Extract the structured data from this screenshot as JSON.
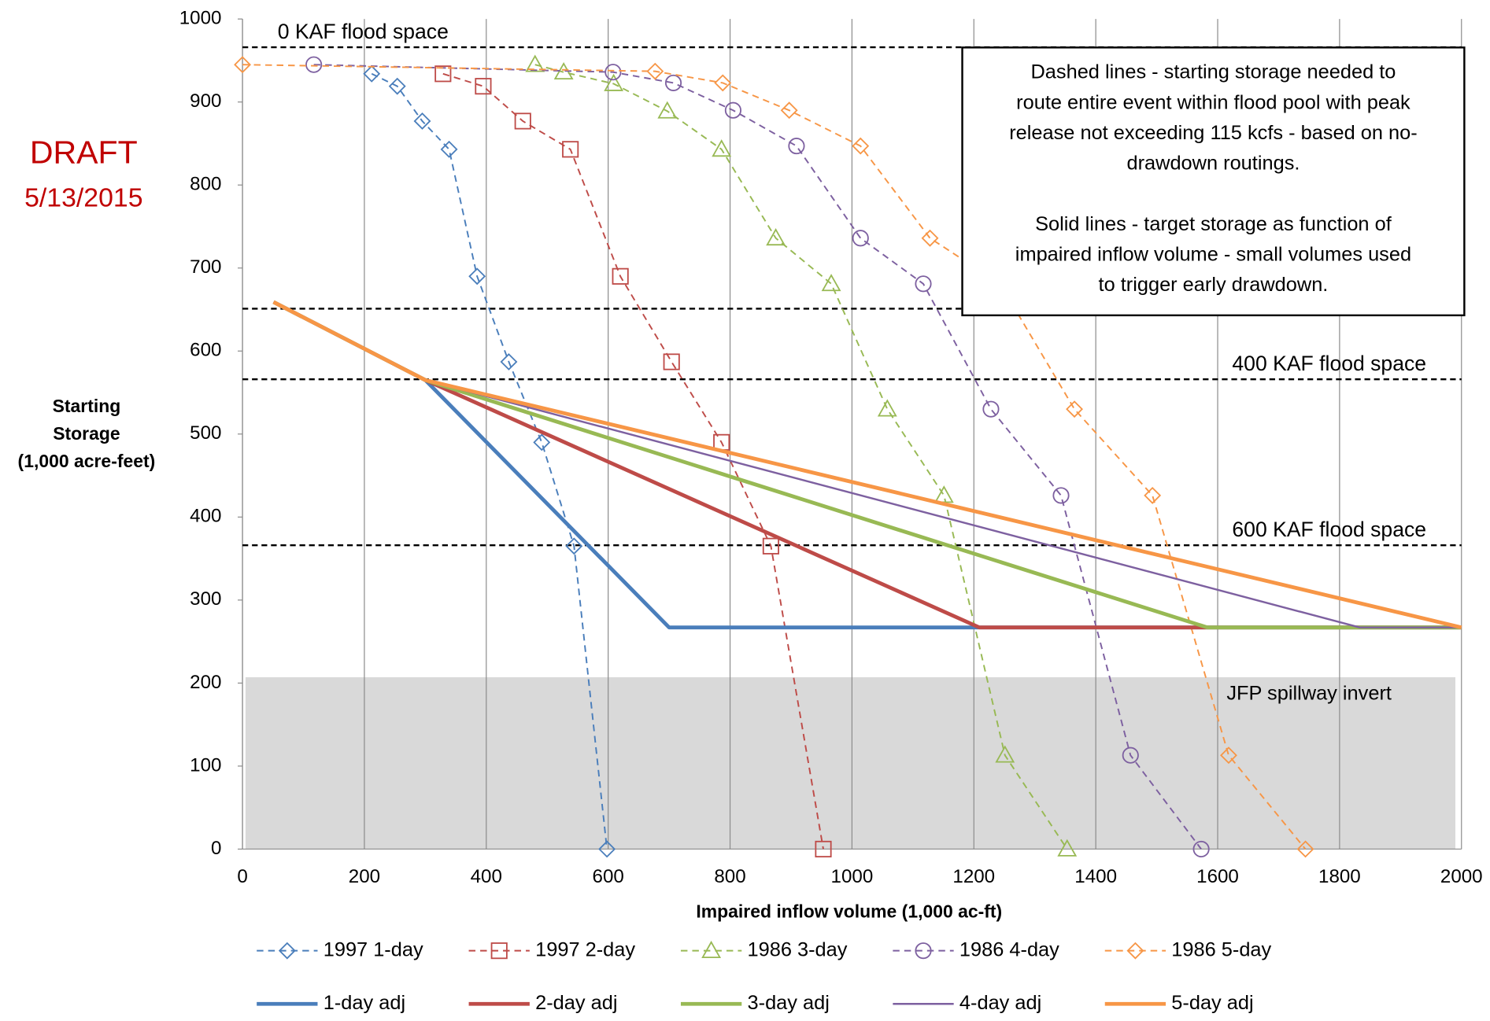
{
  "chart_data": {
    "type": "line",
    "annotations": {
      "draft": "DRAFT",
      "date": "5/13/2015",
      "note_paragraphs": [
        [
          "Dashed lines - starting storage needed to",
          "route entire event within flood pool with peak",
          "release not exceeding 115 kcfs - based on no-",
          "drawdown routings."
        ],
        [
          "Solid lines - target storage as function of",
          "impaired inflow volume - small volumes used",
          "to trigger early drawdown."
        ]
      ]
    },
    "y_label": [
      "Starting",
      "Storage",
      "(1,000 acre-feet)"
    ],
    "x_label": "Impaired inflow volume (1,000 ac-ft)",
    "xlim": [
      0,
      2000
    ],
    "xticks": [
      0,
      200,
      400,
      600,
      800,
      1000,
      1200,
      1400,
      1600,
      1800,
      2000
    ],
    "ylim": [
      0,
      1000
    ],
    "yticks": [
      0,
      100,
      200,
      300,
      400,
      500,
      600,
      700,
      800,
      900,
      1000
    ],
    "grid": "x",
    "reference_lines": [
      {
        "value": 966,
        "label": "0 KAF flood space"
      },
      {
        "value": 651
      },
      {
        "value": 566,
        "label": "400 KAF flood space"
      },
      {
        "value": 366,
        "label": "600 KAF flood space"
      }
    ],
    "shaded_region": {
      "xlim": [
        5,
        1990
      ],
      "ylim": [
        0,
        207
      ],
      "label": "JFP spillway invert",
      "color": "#d9d9d9"
    },
    "series": [
      {
        "name": "1997 1-day",
        "color": "#4a7ebb",
        "style": "dashed",
        "marker": "diamond",
        "x": [
          212,
          254,
          295,
          339,
          385,
          437,
          491,
          544,
          598
        ],
        "values": [
          934,
          919,
          877,
          843,
          690,
          587,
          490,
          365,
          0
        ]
      },
      {
        "name": "1997 2-day",
        "color": "#be4b48",
        "style": "dashed",
        "marker": "square",
        "x": [
          329,
          395,
          460,
          538,
          620,
          704,
          786,
          867,
          953
        ],
        "values": [
          934,
          919,
          877,
          843,
          690,
          587,
          490,
          365,
          0
        ]
      },
      {
        "name": "1986 3-day",
        "color": "#98b954",
        "style": "dashed",
        "marker": "triangle",
        "x": [
          480,
          527,
          609,
          697,
          786,
          875,
          966,
          1058,
          1151,
          1251,
          1353
        ],
        "values": [
          945,
          936,
          922,
          889,
          843,
          736,
          681,
          530,
          426,
          113,
          0
        ]
      },
      {
        "name": "1986 4-day",
        "color": "#7d60a0",
        "style": "dashed",
        "marker": "circle",
        "x": [
          117,
          608,
          707,
          805,
          909,
          1014,
          1117,
          1228,
          1343,
          1457,
          1573
        ],
        "values": [
          945,
          936,
          923,
          890,
          847,
          736,
          681,
          530,
          426,
          113,
          0
        ]
      },
      {
        "name": "1986 5-day",
        "color": "#f79646",
        "style": "dashed",
        "marker": "diamond",
        "x": [
          0,
          677,
          788,
          897,
          1014,
          1128,
          1243,
          1365,
          1493,
          1618,
          1744
        ],
        "values": [
          945,
          937,
          923,
          890,
          847,
          736,
          681,
          530,
          426,
          113,
          0
        ]
      },
      {
        "name": "1-day adj",
        "color": "#4a7ebb",
        "style": "solid",
        "width": 4,
        "x": [
          51,
          300,
          700,
          2000
        ],
        "values": [
          659,
          565,
          267,
          267
        ]
      },
      {
        "name": "2-day adj",
        "color": "#be4b48",
        "style": "solid",
        "width": 4,
        "x": [
          51,
          300,
          1209,
          2000
        ],
        "values": [
          659,
          565,
          267,
          267
        ]
      },
      {
        "name": "3-day adj",
        "color": "#98b954",
        "style": "solid",
        "width": 4,
        "x": [
          51,
          300,
          1583,
          2000
        ],
        "values": [
          659,
          565,
          267,
          267
        ]
      },
      {
        "name": "4-day adj",
        "color": "#7d60a0",
        "style": "solid",
        "width": 2,
        "x": [
          51,
          300,
          1833,
          2000
        ],
        "values": [
          659,
          565,
          267,
          267
        ]
      },
      {
        "name": "5-day adj",
        "color": "#f79646",
        "style": "solid",
        "width": 4,
        "x": [
          51,
          300,
          2000
        ],
        "values": [
          659,
          565,
          267
        ]
      }
    ]
  }
}
